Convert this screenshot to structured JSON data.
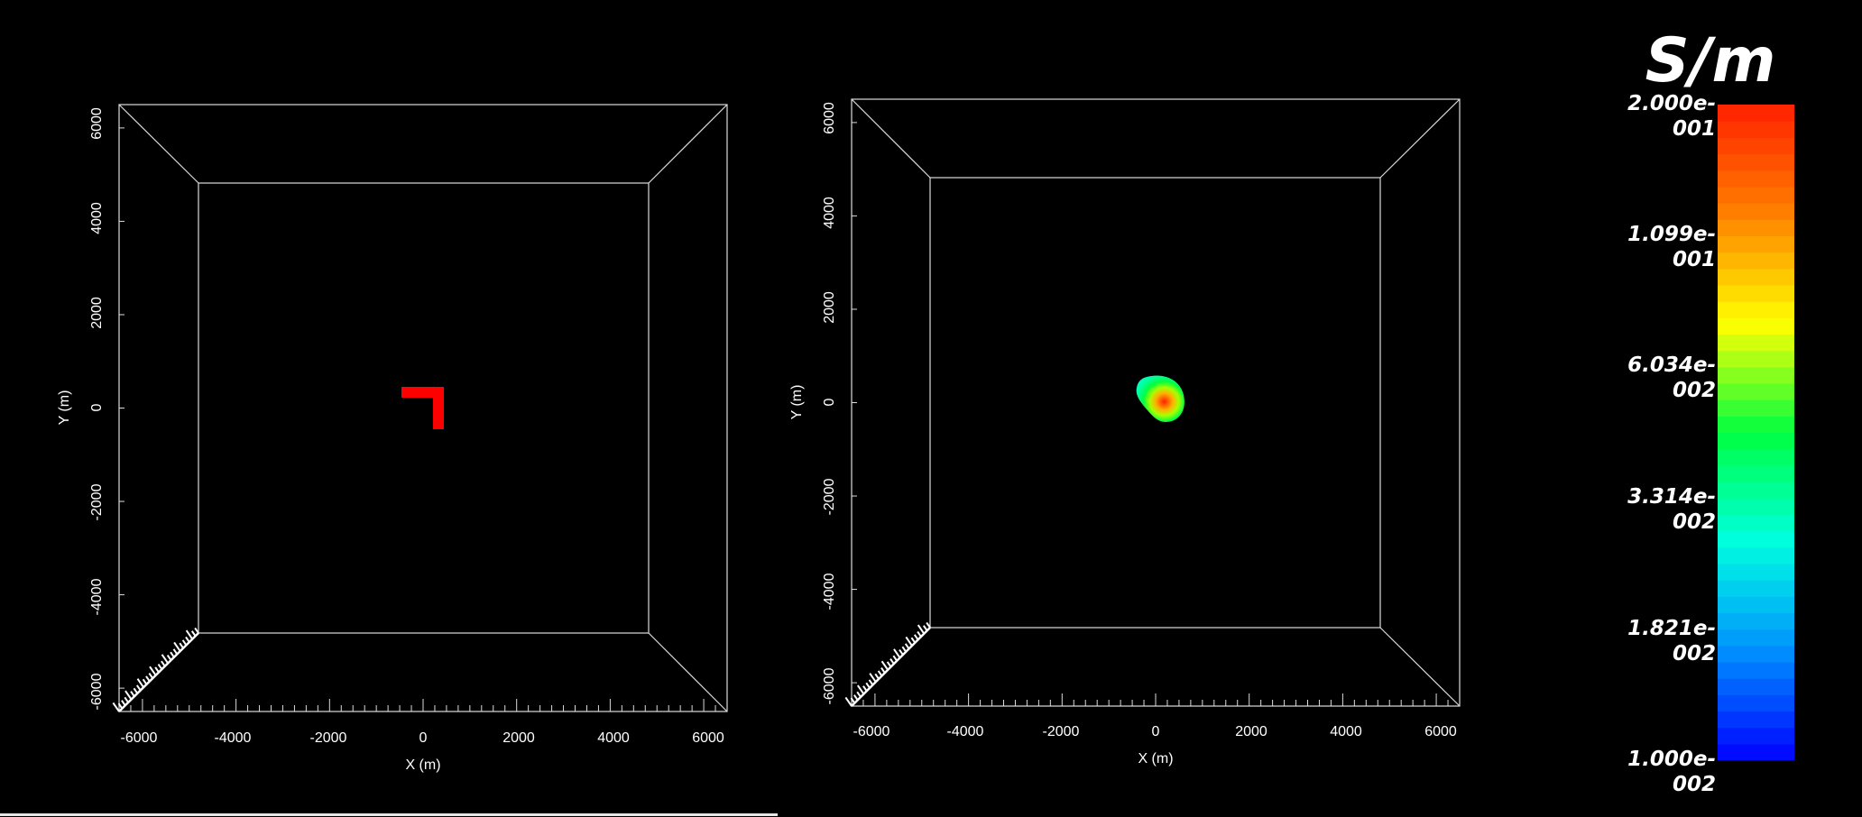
{
  "panels": [
    {
      "name": "model-panel",
      "x_axis": {
        "label": "X (m)",
        "ticks": [
          "-6000",
          "-4000",
          "-2000",
          "0",
          "2000",
          "4000",
          "6000"
        ]
      },
      "y_axis": {
        "label": "Y (m)",
        "ticks": [
          "6000",
          "4000",
          "2000",
          "0",
          "-2000",
          "-4000",
          "-6000"
        ]
      },
      "anomaly": {
        "type": "L-shaped block",
        "color": "#ff0000"
      }
    },
    {
      "name": "inversion-panel",
      "x_axis": {
        "label": "X (m)",
        "ticks": [
          "-6000",
          "-4000",
          "-2000",
          "0",
          "2000",
          "4000",
          "6000"
        ]
      },
      "y_axis": {
        "label": "Y (m)",
        "ticks": [
          "6000",
          "4000",
          "2000",
          "0",
          "-2000",
          "-4000",
          "-6000"
        ]
      },
      "anomaly": {
        "type": "recovered blob",
        "colors": [
          "#ff2000",
          "#ffcc00",
          "#00ff40",
          "#00ffd0"
        ]
      }
    }
  ],
  "colorbar": {
    "title": "S/m",
    "labels": [
      "2.000e-001",
      "1.099e-001",
      "6.034e-002",
      "3.314e-002",
      "1.821e-002",
      "1.000e-002"
    ],
    "scale": "log",
    "range": [
      0.01,
      0.2
    ],
    "colors": [
      "#0000ff",
      "#0090ff",
      "#00ffe0",
      "#00ff40",
      "#ffff00",
      "#ff8000",
      "#ff2000"
    ]
  }
}
